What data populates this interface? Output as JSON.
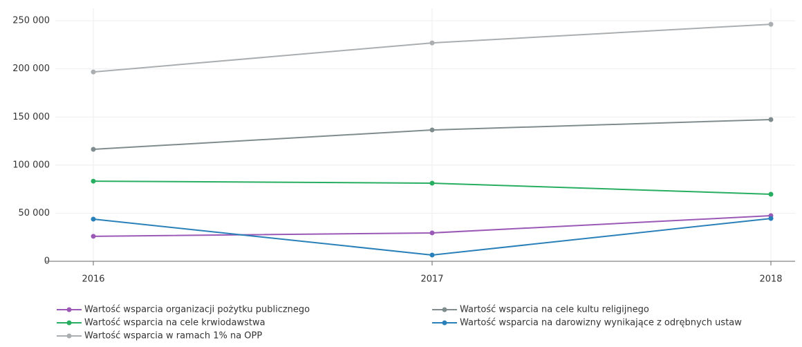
{
  "chart_data": {
    "type": "line",
    "categories": [
      "2016",
      "2017",
      "2018"
    ],
    "series": [
      {
        "name": "Wartość wsparcia organizacji pożytku publicznego",
        "color": "#9b59b6",
        "values": [
          26000,
          29500,
          47400
        ]
      },
      {
        "name": "Wartość wsparcia na cele kultu religijnego",
        "color": "#7f8c8d",
        "values": [
          116400,
          136500,
          147300
        ]
      },
      {
        "name": "Wartość wsparcia na cele krwiodawstwa",
        "color": "#27ae60",
        "values": [
          83300,
          81200,
          69700
        ]
      },
      {
        "name": "Wartość wsparcia na darowizny wynikające z odrębnych ustaw",
        "color": "#2980b9",
        "values": [
          43800,
          6500,
          44500
        ]
      },
      {
        "name": "Wartość wsparcia w ramach 1% na OPP",
        "color": "#aaaeb1",
        "values": [
          196800,
          227000,
          246400
        ]
      }
    ],
    "ylim": [
      0,
      263000
    ],
    "yticks": [
      0,
      {
        "value": 50000,
        "label": "50 000"
      },
      {
        "value": 100000,
        "label": "100 000"
      },
      {
        "value": 150000,
        "label": "150 000"
      },
      {
        "value": 200000,
        "label": "200 000"
      },
      {
        "value": 250000,
        "label": "250 000"
      }
    ],
    "grid": true
  }
}
